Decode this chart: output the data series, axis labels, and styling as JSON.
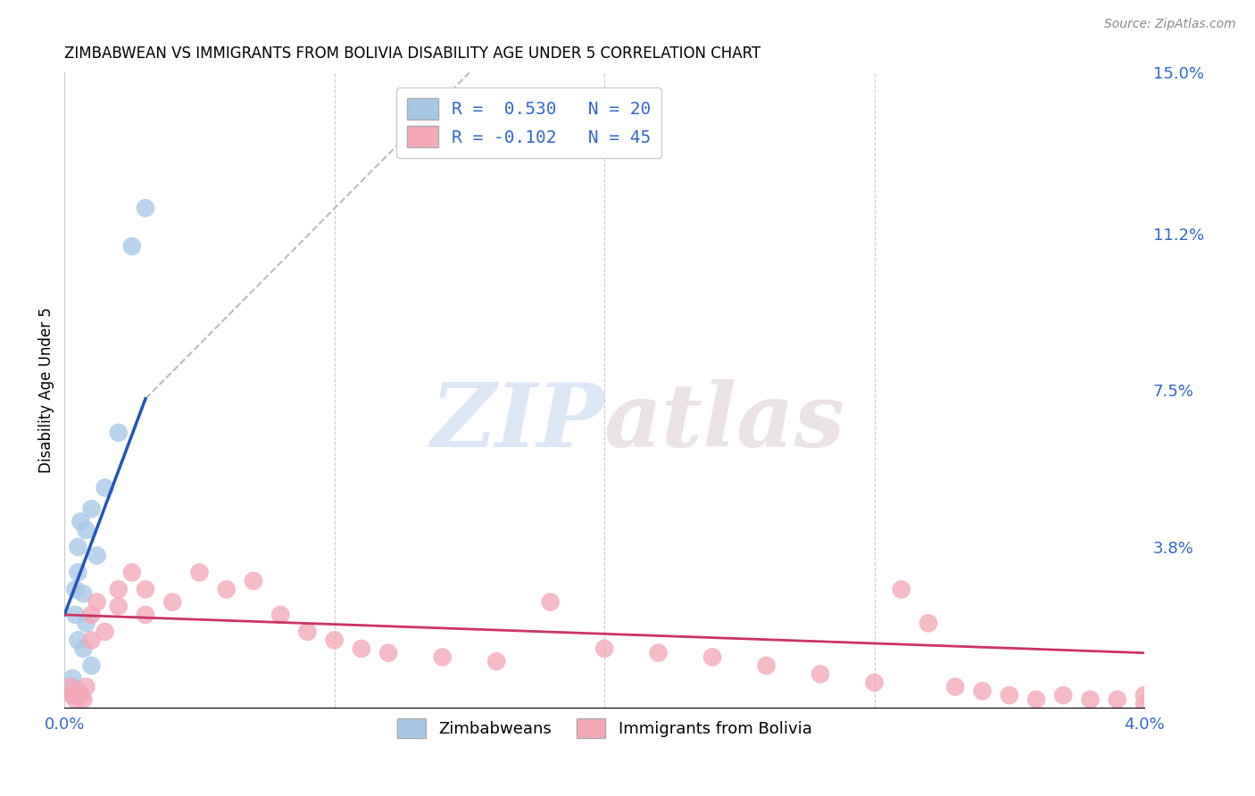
{
  "title": "ZIMBABWEAN VS IMMIGRANTS FROM BOLIVIA DISABILITY AGE UNDER 5 CORRELATION CHART",
  "source": "Source: ZipAtlas.com",
  "ylabel": "Disability Age Under 5",
  "xlim": [
    0.0,
    0.04
  ],
  "ylim": [
    0.0,
    0.15
  ],
  "xtick_positions": [
    0.0,
    0.01,
    0.02,
    0.03,
    0.04
  ],
  "xtick_labels": [
    "0.0%",
    "",
    "",
    "",
    "4.0%"
  ],
  "ytick_positions": [
    0.0,
    0.038,
    0.075,
    0.112,
    0.15
  ],
  "ytick_labels": [
    "",
    "3.8%",
    "7.5%",
    "11.2%",
    "15.0%"
  ],
  "zim_R": "0.530",
  "zim_N": "20",
  "bol_R": "-0.102",
  "bol_N": "45",
  "zim_color": "#a8c8e8",
  "bol_color": "#f4a8b8",
  "zim_line_color": "#2255bb",
  "bol_line_color": "#cc3366",
  "background_color": "#ffffff",
  "grid_color": "#cccccc",
  "zim_scatter_x": [
    0.0003,
    0.0003,
    0.0003,
    0.0004,
    0.0004,
    0.0005,
    0.0005,
    0.0005,
    0.0006,
    0.0007,
    0.0007,
    0.0008,
    0.0008,
    0.001,
    0.001,
    0.0012,
    0.0015,
    0.002,
    0.0025,
    0.003
  ],
  "zim_scatter_y": [
    0.003,
    0.005,
    0.007,
    0.022,
    0.028,
    0.016,
    0.032,
    0.038,
    0.044,
    0.027,
    0.014,
    0.02,
    0.042,
    0.047,
    0.01,
    0.036,
    0.052,
    0.065,
    0.109,
    0.118
  ],
  "bol_scatter_x": [
    0.0002,
    0.0003,
    0.0004,
    0.0005,
    0.0006,
    0.0007,
    0.0008,
    0.001,
    0.001,
    0.0012,
    0.0015,
    0.002,
    0.002,
    0.0025,
    0.003,
    0.003,
    0.004,
    0.005,
    0.006,
    0.007,
    0.008,
    0.009,
    0.01,
    0.011,
    0.012,
    0.014,
    0.016,
    0.018,
    0.02,
    0.022,
    0.024,
    0.026,
    0.028,
    0.03,
    0.031,
    0.032,
    0.033,
    0.034,
    0.035,
    0.036,
    0.037,
    0.038,
    0.039,
    0.04,
    0.04
  ],
  "bol_scatter_y": [
    0.005,
    0.003,
    0.002,
    0.004,
    0.003,
    0.002,
    0.005,
    0.022,
    0.016,
    0.025,
    0.018,
    0.028,
    0.024,
    0.032,
    0.028,
    0.022,
    0.025,
    0.032,
    0.028,
    0.03,
    0.022,
    0.018,
    0.016,
    0.014,
    0.013,
    0.012,
    0.011,
    0.025,
    0.014,
    0.013,
    0.012,
    0.01,
    0.008,
    0.006,
    0.028,
    0.02,
    0.005,
    0.004,
    0.003,
    0.002,
    0.003,
    0.002,
    0.002,
    0.003,
    0.001
  ],
  "zim_line_x": [
    0.0,
    0.003
  ],
  "zim_line_y": [
    0.022,
    0.073
  ],
  "bol_line_x": [
    0.0,
    0.04
  ],
  "bol_line_y": [
    0.022,
    0.013
  ],
  "dash_line_x": [
    0.003,
    0.015
  ],
  "dash_line_y": [
    0.073,
    0.15
  ],
  "watermark_zip": "ZIP",
  "watermark_atlas": "atlas",
  "legend_label1": "R =  0.530   N = 20",
  "legend_label2": "R = -0.102   N = 45",
  "bottom_legend1": "Zimbabweans",
  "bottom_legend2": "Immigrants from Bolivia"
}
